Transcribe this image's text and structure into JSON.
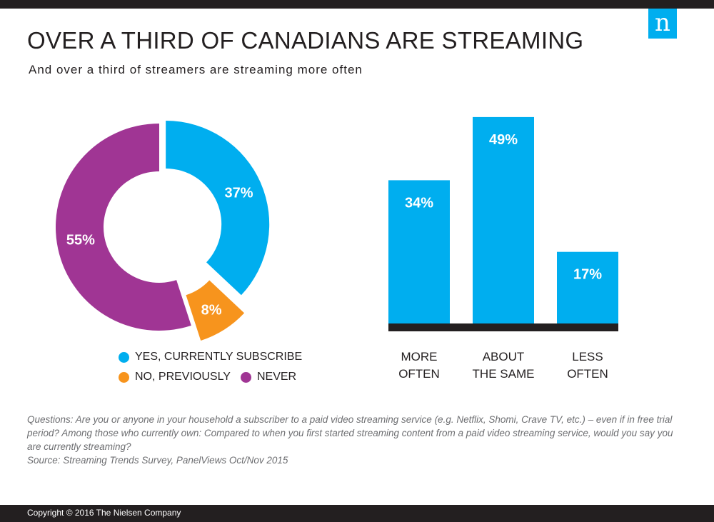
{
  "header": {
    "title": "OVER A THIRD OF CANADIANS ARE STREAMING",
    "subtitle": "And over a third of streamers are streaming more often",
    "logo_text": "n",
    "logo_color": "#00aeef"
  },
  "chart_data": [
    {
      "type": "pie",
      "donut": true,
      "categories": [
        "YES, CURRENTLY SUBSCRIBE",
        "NO, PREVIOUSLY",
        "NEVER"
      ],
      "values": [
        37,
        8,
        55
      ],
      "labels": [
        "37%",
        "8%",
        "55%"
      ],
      "colors": [
        "#00aeef",
        "#f7941d",
        "#a03594"
      ],
      "legend": "bottom"
    },
    {
      "type": "bar",
      "categories": [
        [
          "MORE",
          "OFTEN"
        ],
        [
          "ABOUT",
          "THE SAME"
        ],
        [
          "LESS",
          "OFTEN"
        ]
      ],
      "values": [
        34,
        49,
        17
      ],
      "labels": [
        "34%",
        "49%",
        "17%"
      ],
      "color": "#00aeef",
      "ylim": [
        0,
        100
      ],
      "grid": false
    }
  ],
  "legend": {
    "items": [
      {
        "label": "YES, CURRENTLY SUBSCRIBE",
        "color": "#00aeef"
      },
      {
        "label": "NO, PREVIOUSLY",
        "color": "#f7941d"
      },
      {
        "label": "NEVER",
        "color": "#a03594"
      }
    ]
  },
  "notes": {
    "questions": "Questions: Are you or anyone in your household a subscriber to a paid video streaming service (e.g. Netflix, Shomi, Crave TV, etc.) – even if in free trial period? Among those who currently own: Compared to when you first started streaming content from a paid video streaming service, would you say you are currently streaming?",
    "source": "Source: Streaming Trends Survey, PanelViews Oct/Nov 2015"
  },
  "footer": {
    "copyright": "Copyright © 2016 The Nielsen Company"
  }
}
